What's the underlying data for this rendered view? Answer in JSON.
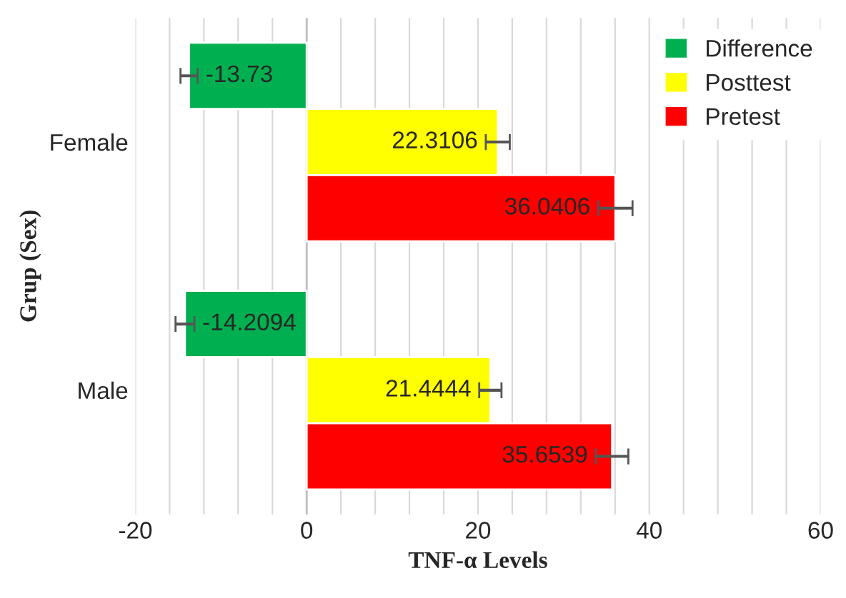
{
  "chart_data": {
    "type": "bar",
    "orientation": "horizontal",
    "categories": [
      "Female",
      "Male"
    ],
    "series": [
      {
        "name": "Difference",
        "color": "#00b050",
        "values": [
          -13.73,
          -14.2094
        ],
        "errors": [
          1,
          1.1
        ]
      },
      {
        "name": "Posttest",
        "color": "#ffff00",
        "values": [
          22.3106,
          21.4444
        ],
        "errors": [
          1.4,
          1.3
        ]
      },
      {
        "name": "Pretest",
        "color": "#ff0000",
        "values": [
          36.0406,
          35.6539
        ],
        "errors": [
          2,
          1.9
        ]
      }
    ],
    "xlim": [
      -20,
      60
    ],
    "xticks": [
      -20,
      {
        "value": -16,
        "label": null
      },
      {
        "value": -12,
        "label": null
      },
      {
        "value": -8,
        "label": null
      },
      {
        "value": -4,
        "label": null
      },
      0,
      {
        "value": 4,
        "label": null
      },
      {
        "value": 8,
        "label": null
      },
      {
        "value": 12,
        "label": null
      },
      {
        "value": 16,
        "label": null
      },
      20,
      {
        "value": 24,
        "label": null
      },
      {
        "value": 28,
        "label": null
      },
      {
        "value": 32,
        "label": null
      },
      {
        "value": 36,
        "label": null
      },
      40,
      {
        "value": 44,
        "label": null
      },
      {
        "value": 48,
        "label": null
      },
      {
        "value": 52,
        "label": null
      },
      {
        "value": 56,
        "label": null
      },
      60
    ],
    "xlabel": "TNF-α Levels",
    "ylabel": "Grup (Sex)",
    "grid": "x",
    "legend": "top right",
    "data_labels": true
  }
}
